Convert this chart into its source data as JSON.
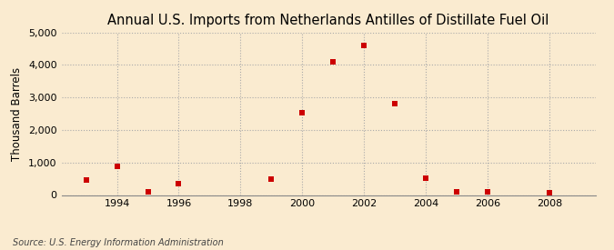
{
  "title": "Annual U.S. Imports from Netherlands Antilles of Distillate Fuel Oil",
  "ylabel": "Thousand Barrels",
  "source": "Source: U.S. Energy Information Administration",
  "background_color": "#faebd0",
  "plot_background_color": "#faebd0",
  "marker_color": "#cc0000",
  "years": [
    1993,
    1994,
    1995,
    1996,
    1999,
    2000,
    2001,
    2002,
    2003,
    2004,
    2005,
    2006,
    2008
  ],
  "values": [
    450,
    870,
    90,
    350,
    500,
    2520,
    4100,
    4600,
    2820,
    520,
    110,
    110,
    75
  ],
  "xlim": [
    1992.2,
    2009.5
  ],
  "ylim": [
    0,
    5000
  ],
  "yticks": [
    0,
    1000,
    2000,
    3000,
    4000,
    5000
  ],
  "xticks": [
    1994,
    1996,
    1998,
    2000,
    2002,
    2004,
    2006,
    2008
  ],
  "title_fontsize": 10.5,
  "label_fontsize": 8.5,
  "tick_fontsize": 8,
  "source_fontsize": 7
}
